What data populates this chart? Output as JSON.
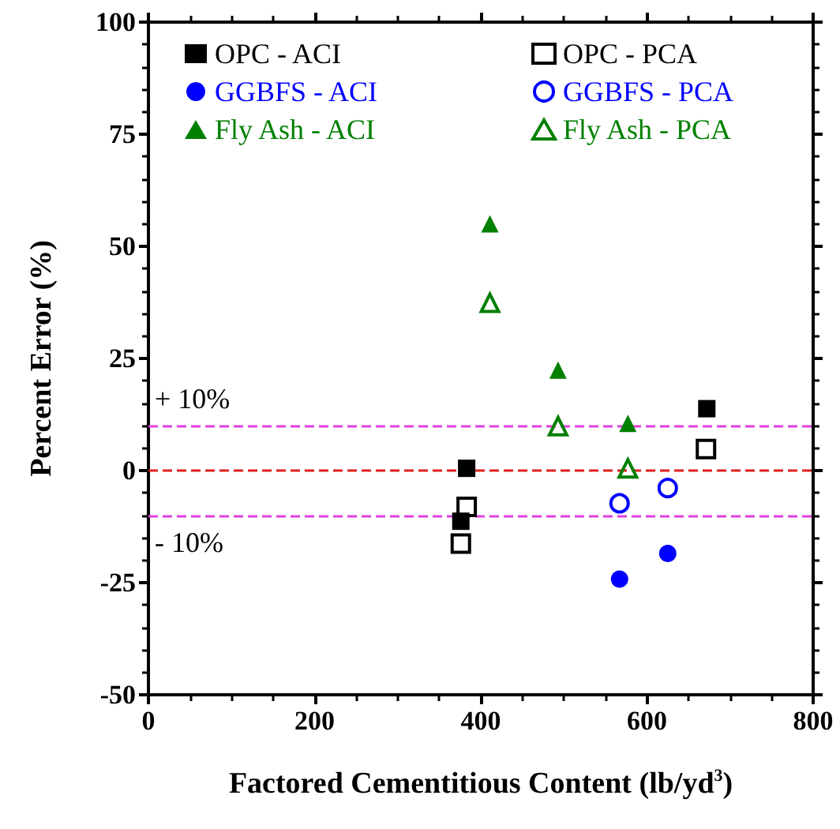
{
  "chart_data": {
    "type": "scatter",
    "xlabel": "Factored Cementitious Content (lb/yd$^{3}$)",
    "ylabel": "Percent Error (%)",
    "xlim": [
      0,
      800
    ],
    "xticks": [
      0,
      200,
      400,
      600,
      800
    ],
    "ylim": [
      -50,
      100
    ],
    "yticks": [
      -50,
      -25,
      0,
      25,
      50,
      75,
      100
    ],
    "grid": false,
    "legend": "top",
    "series": [
      {
        "name": "OPC - ACI",
        "color": "#000000",
        "marker": "square",
        "x": [
          383,
          376,
          672
        ],
        "values": [
          0.5,
          -11.3,
          13.8
        ]
      },
      {
        "name": "OPC - PCA",
        "color": "#000000",
        "marker": "square-open",
        "x": [
          383,
          376,
          671
        ],
        "values": [
          -8.1,
          -16.3,
          4.8
        ]
      },
      {
        "name": "GGBFS - ACI",
        "color": "#0000ff",
        "marker": "circle",
        "x": [
          567,
          625
        ],
        "values": [
          -24.2,
          -18.5
        ]
      },
      {
        "name": "GGBFS - PCA",
        "color": "#0000ff",
        "marker": "circle-open",
        "x": [
          567,
          625
        ],
        "values": [
          -7.3,
          -3.9
        ]
      },
      {
        "name": "Fly Ash - ACI",
        "color": "#008000",
        "marker": "triangle",
        "x": [
          411,
          493,
          577
        ],
        "values": [
          55,
          22.4,
          10.5
        ]
      },
      {
        "name": "Fly Ash - PCA",
        "color": "#008000",
        "marker": "triangle-open",
        "x": [
          411,
          493,
          577
        ],
        "values": [
          37.4,
          9.9,
          0.5
        ]
      }
    ],
    "ref_lines": [
      {
        "axis": "y",
        "value": 10,
        "label": "+ 10%",
        "color": "#e040e0",
        "line_style": "dashed"
      },
      {
        "axis": "y",
        "value": 0,
        "color": "#e02020",
        "line_style": "dashed"
      },
      {
        "axis": "y",
        "value": -10,
        "label": "- 10%",
        "color": "#e040e0",
        "line_style": "dashed"
      }
    ]
  }
}
